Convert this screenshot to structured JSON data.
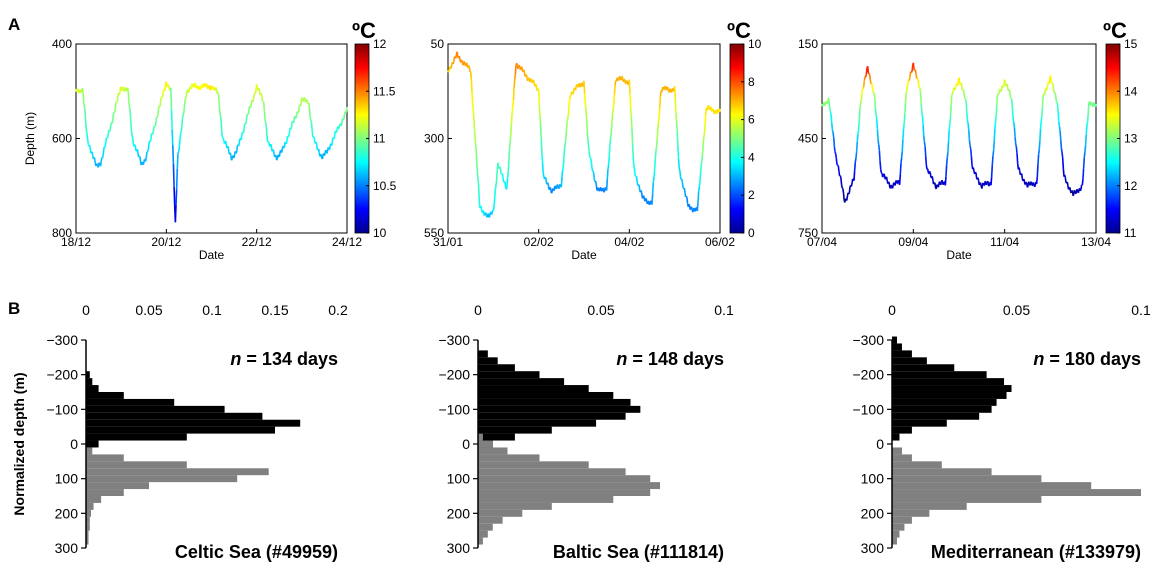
{
  "panel_labels": {
    "a": "A",
    "b": "B"
  },
  "chart_data": [
    {
      "type": "line",
      "panel": "A",
      "ylabel": "Depth (m)",
      "xlabel": "Date",
      "xtick_labels": [
        "18/12",
        "20/12",
        "22/12",
        "24/12"
      ],
      "ytick_labels": [
        "400",
        "600",
        "800"
      ],
      "ylim": [
        800,
        400
      ],
      "colorbar": {
        "unit": "ºC",
        "min": 10,
        "max": 12,
        "tick_labels": [
          "12",
          "11.5",
          "11",
          "10.5",
          "10"
        ],
        "colormap": "jet"
      },
      "series": [
        {
          "x_days": [
            0,
            0.15,
            0.25,
            0.45,
            0.55,
            1.0,
            1.15,
            1.25,
            1.45,
            1.55,
            2.0,
            2.1,
            2.15,
            2.2,
            2.25,
            2.45,
            2.55,
            3.0,
            3.15,
            3.25,
            3.45,
            3.55,
            4.0,
            4.15,
            4.25,
            4.45,
            4.55,
            5.0,
            5.15,
            5.25,
            5.45,
            5.55,
            6.0
          ],
          "depth": [
            495,
            500,
            600,
            660,
            650,
            490,
            500,
            600,
            655,
            640,
            480,
            500,
            640,
            780,
            640,
            500,
            490,
            490,
            505,
            600,
            640,
            630,
            490,
            520,
            610,
            640,
            630,
            520,
            520,
            600,
            640,
            630,
            540
          ],
          "temp_C": [
            11.2,
            11.1,
            10.8,
            10.6,
            10.6,
            11.2,
            11.1,
            10.8,
            10.6,
            10.6,
            11.3,
            11.1,
            10.6,
            10.1,
            10.6,
            11.1,
            11.2,
            11.3,
            11.1,
            10.8,
            10.6,
            10.6,
            11.2,
            11.1,
            10.8,
            10.6,
            10.6,
            11.1,
            11.1,
            10.8,
            10.6,
            10.6,
            11.0
          ]
        }
      ]
    },
    {
      "type": "line",
      "panel": "A",
      "xlabel": "Date",
      "xtick_labels": [
        "31/01",
        "02/02",
        "04/02",
        "06/02"
      ],
      "ytick_labels": [
        "50",
        "300",
        "550"
      ],
      "ylim": [
        550,
        50
      ],
      "colorbar": {
        "unit": "ºC",
        "min": 0,
        "max": 10,
        "tick_labels": [
          "10",
          "8",
          "6",
          "4",
          "2",
          "0"
        ],
        "colormap": "jet"
      },
      "series": [
        {
          "x_days": [
            0,
            0.2,
            0.5,
            0.7,
            0.9,
            1.0,
            1.1,
            1.3,
            1.5,
            1.7,
            2.0,
            2.1,
            2.3,
            2.5,
            2.7,
            3.0,
            3.1,
            3.3,
            3.5,
            3.7,
            4.0,
            4.1,
            4.3,
            4.5,
            4.7,
            5.0,
            5.1,
            5.3,
            5.5,
            5.7,
            6.0
          ],
          "depth": [
            120,
            80,
            120,
            480,
            510,
            490,
            370,
            430,
            100,
            130,
            170,
            400,
            440,
            420,
            180,
            150,
            330,
            440,
            430,
            140,
            150,
            380,
            460,
            470,
            170,
            170,
            380,
            480,
            490,
            220,
            230
          ],
          "temp_C": [
            6.5,
            7.5,
            7.0,
            4.0,
            3.0,
            3.5,
            4.5,
            3.5,
            7.5,
            7.0,
            6.5,
            3.5,
            2.5,
            3.0,
            6.5,
            7.0,
            4.5,
            2.5,
            2.5,
            7.0,
            7.0,
            4.0,
            2.5,
            2.5,
            7.0,
            7.0,
            3.5,
            2.5,
            2.5,
            6.5,
            6.5
          ]
        }
      ]
    },
    {
      "type": "line",
      "panel": "A",
      "xlabel": "Date",
      "xtick_labels": [
        "07/04",
        "09/04",
        "11/04",
        "13/04"
      ],
      "ytick_labels": [
        "150",
        "450",
        "750"
      ],
      "ylim": [
        750,
        150
      ],
      "colorbar": {
        "unit": "ºC",
        "min": 11,
        "max": 15,
        "tick_labels": [
          "15",
          "14",
          "13",
          "12",
          "11"
        ],
        "colormap": "jet"
      },
      "series": [
        {
          "x_days": [
            0,
            0.15,
            0.3,
            0.5,
            0.7,
            0.85,
            1.0,
            1.15,
            1.3,
            1.5,
            1.7,
            1.85,
            2.0,
            2.15,
            2.3,
            2.5,
            2.7,
            2.85,
            3.0,
            3.15,
            3.3,
            3.5,
            3.7,
            3.85,
            4.0,
            4.15,
            4.3,
            4.5,
            4.7,
            4.85,
            5.0,
            5.15,
            5.3,
            5.5,
            5.7,
            5.85,
            6.0
          ],
          "depth": [
            340,
            330,
            500,
            650,
            580,
            330,
            220,
            320,
            560,
            600,
            590,
            300,
            210,
            300,
            550,
            600,
            590,
            310,
            260,
            330,
            550,
            600,
            590,
            310,
            270,
            320,
            550,
            600,
            590,
            310,
            260,
            330,
            570,
            630,
            600,
            330,
            350
          ],
          "temp_C": [
            13.0,
            13.1,
            11.6,
            11.1,
            11.3,
            13.1,
            14.5,
            13.2,
            11.4,
            11.2,
            11.3,
            13.2,
            14.4,
            13.3,
            11.4,
            11.2,
            11.3,
            13.2,
            13.6,
            13.0,
            11.4,
            11.2,
            11.3,
            13.1,
            13.4,
            13.0,
            11.4,
            11.2,
            11.3,
            13.1,
            13.6,
            12.9,
            11.3,
            11.1,
            11.3,
            13.0,
            12.9
          ]
        }
      ]
    },
    {
      "type": "histogram",
      "panel": "B",
      "ylabel": "Normalized depth (m)",
      "xtick_labels": [
        "0",
        "0.05",
        "0.1",
        "0.15",
        "0.2"
      ],
      "xlim": [
        0,
        0.2
      ],
      "ytick_labels": [
        "−300",
        "−200",
        "−100",
        "0",
        "100",
        "200",
        "300"
      ],
      "ylim": [
        -300,
        300
      ],
      "annotation": {
        "prefix": "n",
        "text": " = 134 days"
      },
      "site_label": "Celtic Sea  (#49959)",
      "series": [
        {
          "color": "#000000",
          "bins": [
            [
              -200,
              0.003
            ],
            [
              -180,
              0.005
            ],
            [
              -160,
              0.01
            ],
            [
              -140,
              0.03
            ],
            [
              -120,
              0.07
            ],
            [
              -100,
              0.11
            ],
            [
              -80,
              0.14
            ],
            [
              -60,
              0.17
            ],
            [
              -40,
              0.15
            ],
            [
              -20,
              0.08
            ],
            [
              0,
              0.01
            ]
          ]
        },
        {
          "color": "#808080",
          "bins": [
            [
              20,
              0.005
            ],
            [
              40,
              0.03
            ],
            [
              60,
              0.08
            ],
            [
              80,
              0.145
            ],
            [
              100,
              0.12
            ],
            [
              120,
              0.05
            ],
            [
              140,
              0.03
            ],
            [
              160,
              0.012
            ],
            [
              180,
              0.006
            ],
            [
              200,
              0.004
            ],
            [
              220,
              0.003
            ],
            [
              240,
              0.003
            ],
            [
              260,
              0.002
            ],
            [
              280,
              0.002
            ]
          ]
        }
      ]
    },
    {
      "type": "histogram",
      "panel": "B",
      "xtick_labels": [
        "0",
        "0.05",
        "0.1"
      ],
      "xlim": [
        0,
        0.1
      ],
      "ytick_labels": [
        "−300",
        "−200",
        "−100",
        "0",
        "100",
        "200",
        "300"
      ],
      "ylim": [
        -300,
        300
      ],
      "annotation": {
        "prefix": "n",
        "text": " = 148 days"
      },
      "site_label": "Baltic Sea (#111814)",
      "series": [
        {
          "color": "#000000",
          "bins": [
            [
              -260,
              0.004
            ],
            [
              -240,
              0.008
            ],
            [
              -220,
              0.015
            ],
            [
              -200,
              0.025
            ],
            [
              -180,
              0.035
            ],
            [
              -160,
              0.045
            ],
            [
              -140,
              0.055
            ],
            [
              -120,
              0.062
            ],
            [
              -100,
              0.066
            ],
            [
              -80,
              0.06
            ],
            [
              -60,
              0.048
            ],
            [
              -40,
              0.03
            ],
            [
              -20,
              0.015
            ],
            [
              0,
              0.006
            ]
          ]
        },
        {
          "color": "#808080",
          "bins": [
            [
              -20,
              0.002
            ],
            [
              0,
              0.006
            ],
            [
              20,
              0.012
            ],
            [
              40,
              0.025
            ],
            [
              60,
              0.045
            ],
            [
              80,
              0.06
            ],
            [
              100,
              0.07
            ],
            [
              120,
              0.074
            ],
            [
              140,
              0.07
            ],
            [
              160,
              0.055
            ],
            [
              180,
              0.03
            ],
            [
              200,
              0.018
            ],
            [
              220,
              0.01
            ],
            [
              240,
              0.006
            ],
            [
              260,
              0.004
            ],
            [
              280,
              0.002
            ]
          ]
        }
      ]
    },
    {
      "type": "histogram",
      "panel": "B",
      "xtick_labels": [
        "0",
        "0.05",
        "0.1"
      ],
      "xlim": [
        0,
        0.1
      ],
      "ytick_labels": [
        "−300",
        "−200",
        "−100",
        "0",
        "100",
        "200",
        "300"
      ],
      "ylim": [
        -300,
        300
      ],
      "annotation": {
        "prefix": "n",
        "text": " = 180 days"
      },
      "site_label": "Mediterranean (#133979)",
      "series": [
        {
          "color": "#000000",
          "bins": [
            [
              -300,
              0.002
            ],
            [
              -280,
              0.004
            ],
            [
              -260,
              0.008
            ],
            [
              -240,
              0.014
            ],
            [
              -220,
              0.025
            ],
            [
              -200,
              0.038
            ],
            [
              -180,
              0.045
            ],
            [
              -160,
              0.048
            ],
            [
              -140,
              0.046
            ],
            [
              -120,
              0.042
            ],
            [
              -100,
              0.04
            ],
            [
              -80,
              0.035
            ],
            [
              -60,
              0.022
            ],
            [
              -40,
              0.008
            ],
            [
              -20,
              0.003
            ]
          ]
        },
        {
          "color": "#808080",
          "bins": [
            [
              20,
              0.004
            ],
            [
              40,
              0.008
            ],
            [
              60,
              0.02
            ],
            [
              80,
              0.04
            ],
            [
              100,
              0.06
            ],
            [
              120,
              0.08
            ],
            [
              140,
              0.1
            ],
            [
              160,
              0.06
            ],
            [
              180,
              0.03
            ],
            [
              200,
              0.015
            ],
            [
              220,
              0.008
            ],
            [
              240,
              0.005
            ],
            [
              260,
              0.003
            ],
            [
              280,
              0.002
            ]
          ]
        }
      ]
    }
  ]
}
